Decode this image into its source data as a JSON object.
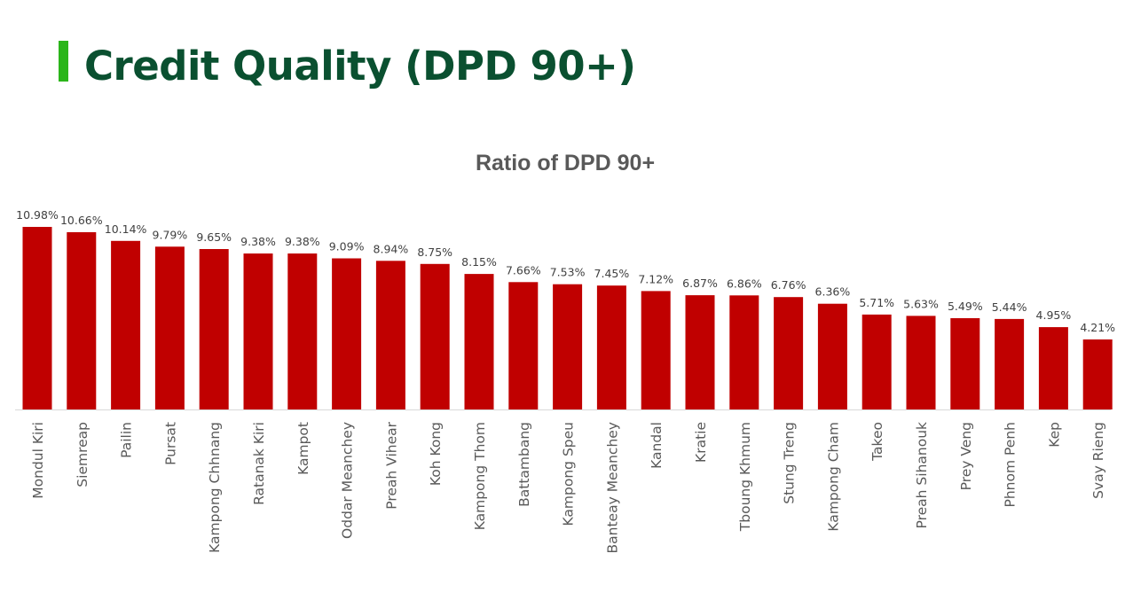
{
  "slide": {
    "title": "Credit Quality (DPD 90+)",
    "accent_color": "#2bb51a",
    "title_color": "#0a5030"
  },
  "chart_data": {
    "type": "bar",
    "title": "Ratio of DPD 90+",
    "xlabel": "",
    "ylabel": "",
    "ylim": [
      0,
      11
    ],
    "grid": false,
    "legend": "none",
    "bar_color": "#c00000",
    "value_format": "percent",
    "categories": [
      "Mondul Kiri",
      "Siemreap",
      "Pailin",
      "Pursat",
      "Kampong Chhnang",
      "Ratanak Kiri",
      "Kampot",
      "Oddar Meanchey",
      "Preah Vihear",
      "Koh Kong",
      "Kampong Thom",
      "Battambang",
      "Kampong Speu",
      "Banteay Meanchey",
      "Kandal",
      "Kratie",
      "Tboung Khmum",
      "Stung Treng",
      "Kampong Cham",
      "Takeo",
      "Preah Sihanouk",
      "Prey Veng",
      "Phnom Penh",
      "Kep",
      "Svay Rieng"
    ],
    "values": [
      10.98,
      10.66,
      10.14,
      9.79,
      9.65,
      9.38,
      9.38,
      9.09,
      8.94,
      8.75,
      8.15,
      7.66,
      7.53,
      7.45,
      7.12,
      6.87,
      6.86,
      6.76,
      6.36,
      5.71,
      5.63,
      5.49,
      5.44,
      4.95,
      4.21
    ],
    "data_labels": [
      "10.98%",
      "10.66%",
      "10.14%",
      "9.79%",
      "9.65%",
      "9.38%",
      "9.38%",
      "9.09%",
      "8.94%",
      "8.75%",
      "8.15%",
      "7.66%",
      "7.53%",
      "7.45%",
      "7.12%",
      "6.87%",
      "6.86%",
      "6.76%",
      "6.36%",
      "5.71%",
      "5.63%",
      "5.49%",
      "5.44%",
      "4.95%",
      "4.21%"
    ]
  }
}
